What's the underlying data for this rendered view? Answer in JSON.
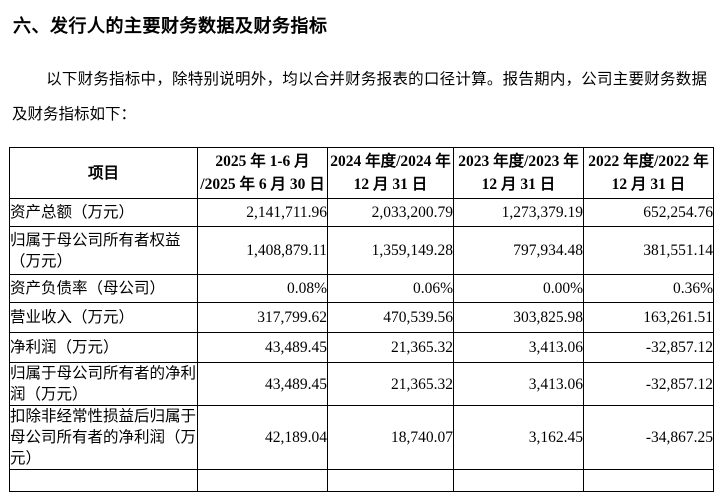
{
  "page": {
    "section_title": "六、发行人的主要财务数据及财务指标",
    "intro": "以下财务指标中，除特别说明外，均以合并财务报表的口径计算。报告期内，公司主要财务数据及财务指标如下："
  },
  "table": {
    "headers": [
      {
        "line1": "项目",
        "line2": ""
      },
      {
        "line1": "2025 年 1-6 月",
        "line2": "/2025 年 6 月 30 日"
      },
      {
        "line1": "2024 年度/2024 年",
        "line2": "12 月 31 日"
      },
      {
        "line1": "2023 年度/2023 年",
        "line2": "12 月 31 日"
      },
      {
        "line1": "2022 年度/2022 年",
        "line2": "12 月 31 日"
      }
    ],
    "rows": [
      {
        "item": "资产总额（万元）",
        "values": [
          "2,141,711.96",
          "2,033,200.79",
          "1,273,379.19",
          "652,254.76"
        ]
      },
      {
        "item": "归属于母公司所有者权益（万元）",
        "values": [
          "1,408,879.11",
          "1,359,149.28",
          "797,934.48",
          "381,551.14"
        ]
      },
      {
        "item": "资产负债率（母公司）",
        "values": [
          "0.08%",
          "0.06%",
          "0.00%",
          "0.36%"
        ]
      },
      {
        "item": "营业收入（万元）",
        "values": [
          "317,799.62",
          "470,539.56",
          "303,825.98",
          "163,261.51"
        ]
      },
      {
        "item": "净利润（万元）",
        "values": [
          "43,489.45",
          "21,365.32",
          "3,413.06",
          "-32,857.12"
        ]
      },
      {
        "item": "归属于母公司所有者的净利润（万元）",
        "values": [
          "43,489.45",
          "21,365.32",
          "3,413.06",
          "-32,857.12"
        ]
      },
      {
        "item": "扣除非经常性损益后归属于母公司所有者的净利润（万元）",
        "values": [
          "42,189.04",
          "18,740.07",
          "3,162.45",
          "-34,867.25"
        ]
      }
    ]
  }
}
